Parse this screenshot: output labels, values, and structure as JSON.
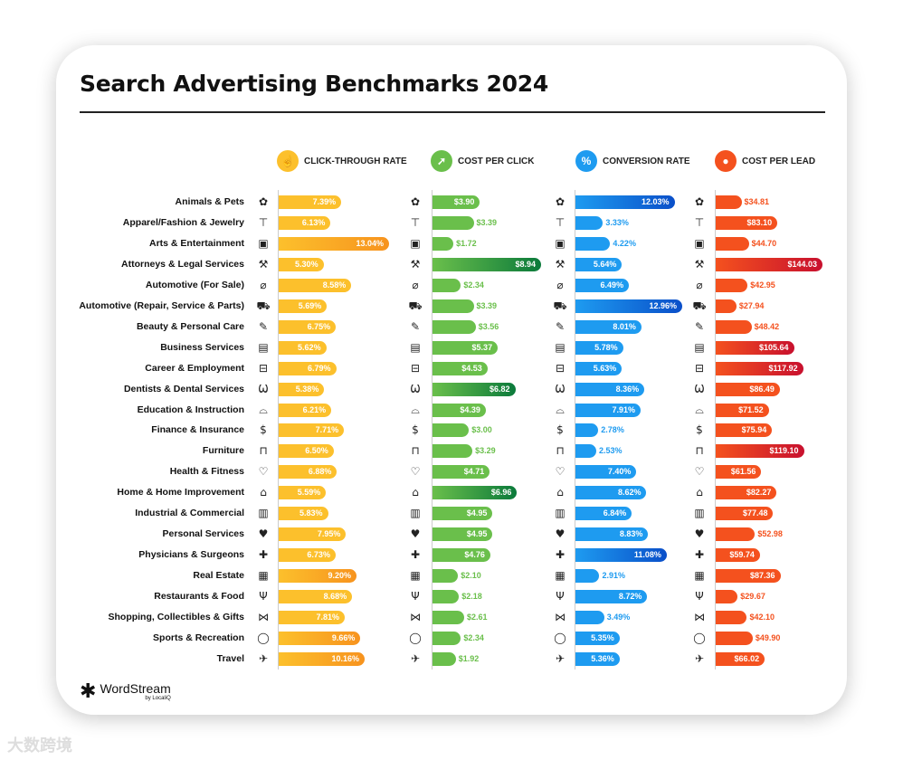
{
  "title": "Search Advertising Benchmarks 2024",
  "logo": {
    "name": "WordStream",
    "by": "by LocaliQ"
  },
  "watermark": "大数跨境",
  "chart_data": {
    "type": "bar",
    "title": "Search Advertising Benchmarks 2024",
    "categories": [
      "Animals & Pets",
      "Apparel/Fashion & Jewelry",
      "Arts & Entertainment",
      "Attorneys & Legal Services",
      "Automotive (For Sale)",
      "Automotive (Repair, Service & Parts)",
      "Beauty & Personal Care",
      "Business Services",
      "Career & Employment",
      "Dentists & Dental Services",
      "Education & Instruction",
      "Finance & Insurance",
      "Furniture",
      "Health & Fitness",
      "Home & Home Improvement",
      "Industrial & Commercial",
      "Personal Services",
      "Physicians & Surgeons",
      "Real Estate",
      "Restaurants & Food",
      "Shopping, Collectibles & Gifts",
      "Sports & Recreation",
      "Travel"
    ],
    "icons": [
      "paw-icon",
      "tshirt-icon",
      "picture-icon",
      "gavel-icon",
      "tag-icon",
      "car-icon",
      "brush-icon",
      "newspaper-icon",
      "briefcase-icon",
      "tooth-icon",
      "graduation-cap-icon",
      "piggy-bank-icon",
      "armchair-icon",
      "heart-icon",
      "house-icon",
      "factory-icon",
      "hand-heart-icon",
      "medical-cross-icon",
      "storefront-icon",
      "fork-knife-icon",
      "bow-icon",
      "ball-icon",
      "airplane-icon"
    ],
    "series": [
      {
        "name": "CLICK-THROUGH RATE",
        "icon": "tap-icon",
        "format": "pct",
        "colors": [
          "#fcc02c",
          "#f7931e"
        ],
        "values": [
          7.39,
          6.13,
          13.04,
          5.3,
          8.58,
          5.69,
          6.75,
          5.62,
          6.79,
          5.38,
          6.21,
          7.71,
          6.5,
          6.88,
          5.59,
          5.83,
          7.95,
          6.73,
          9.2,
          8.68,
          7.81,
          9.66,
          10.16
        ]
      },
      {
        "name": "COST PER CLICK",
        "icon": "cursor-click-icon",
        "format": "usd",
        "colors": [
          "#6abf4b",
          "#0b7a3b"
        ],
        "values": [
          3.9,
          3.39,
          1.72,
          8.94,
          2.34,
          3.39,
          3.56,
          5.37,
          4.53,
          6.82,
          4.39,
          3.0,
          3.29,
          4.71,
          6.96,
          4.95,
          4.95,
          4.76,
          2.1,
          2.18,
          2.61,
          2.34,
          1.92
        ]
      },
      {
        "name": "CONVERSION RATE",
        "icon": "percent-icon",
        "format": "pct",
        "colors": [
          "#1e9bf0",
          "#0a4fc9"
        ],
        "values": [
          12.03,
          3.33,
          4.22,
          5.64,
          6.49,
          12.96,
          8.01,
          5.78,
          5.63,
          8.36,
          7.91,
          2.78,
          2.53,
          7.4,
          8.62,
          6.84,
          8.83,
          11.08,
          2.91,
          8.72,
          3.49,
          5.35,
          5.36
        ]
      },
      {
        "name": "COST PER LEAD",
        "icon": "person-coin-icon",
        "format": "usd",
        "colors": [
          "#f4511e",
          "#c8102e"
        ],
        "values": [
          34.81,
          83.1,
          44.7,
          144.03,
          42.95,
          27.94,
          48.42,
          105.64,
          117.92,
          86.49,
          71.52,
          75.94,
          119.1,
          61.56,
          82.27,
          77.48,
          52.98,
          59.74,
          87.36,
          29.67,
          42.1,
          49.9,
          66.02
        ]
      }
    ],
    "xlabel": "",
    "ylabel": "",
    "grid": false
  }
}
